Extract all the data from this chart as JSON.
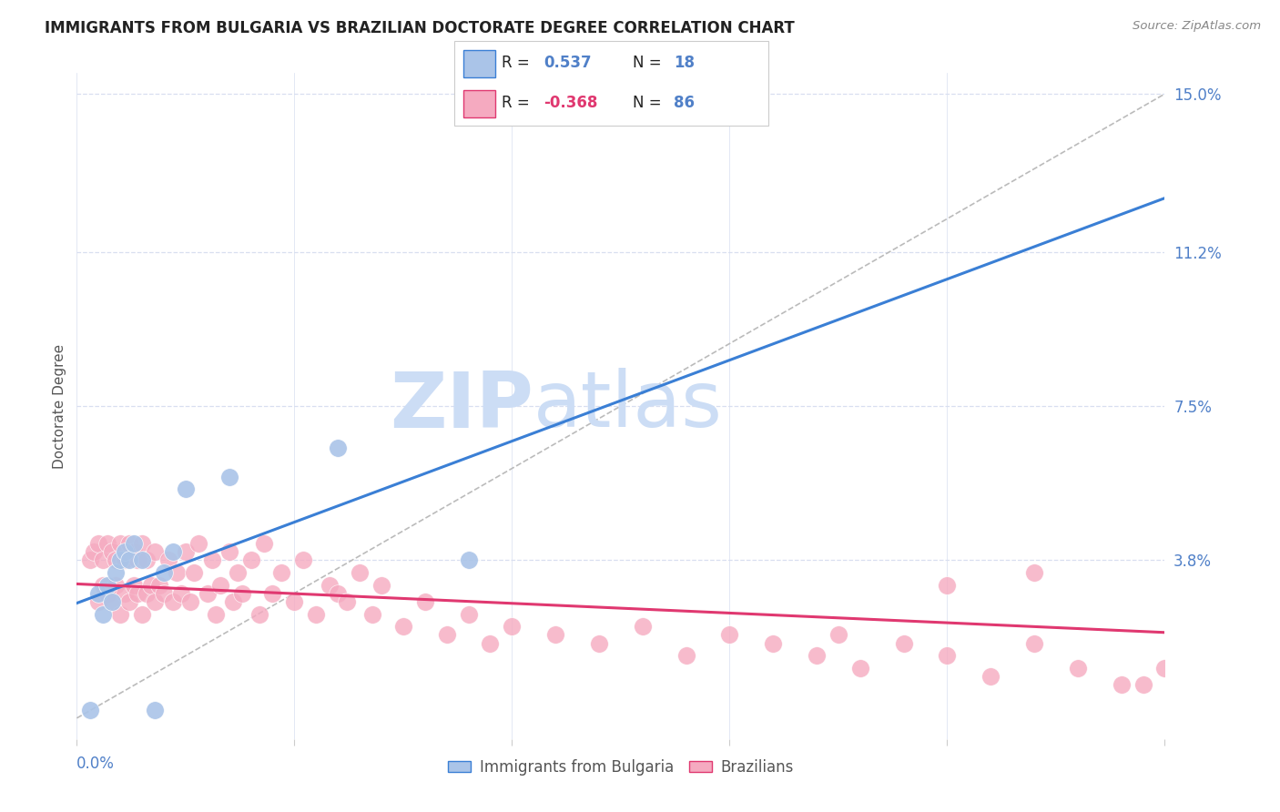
{
  "title": "IMMIGRANTS FROM BULGARIA VS BRAZILIAN DOCTORATE DEGREE CORRELATION CHART",
  "source": "Source: ZipAtlas.com",
  "ylabel": "Doctorate Degree",
  "y_ticks": [
    0.038,
    0.075,
    0.112,
    0.15
  ],
  "y_tick_labels": [
    "3.8%",
    "7.5%",
    "11.2%",
    "15.0%"
  ],
  "x_lim": [
    0.0,
    0.25
  ],
  "y_lim": [
    -0.005,
    0.155
  ],
  "bulgaria_color": "#aac4e8",
  "brazil_color": "#f5aac0",
  "bulgaria_line_color": "#3a7fd5",
  "brazil_line_color": "#e03870",
  "r_bulgaria": 0.537,
  "n_bulgaria": 18,
  "r_brazil": -0.368,
  "n_brazil": 86,
  "watermark_zip": "ZIP",
  "watermark_atlas": "atlas",
  "watermark_color": "#ccddf5",
  "title_fontsize": 12,
  "axis_label_color": "#5080c8",
  "grid_color": "#d8dff0",
  "background_color": "#ffffff",
  "bulgaria_scatter_x": [
    0.003,
    0.005,
    0.006,
    0.007,
    0.008,
    0.009,
    0.01,
    0.011,
    0.012,
    0.013,
    0.015,
    0.018,
    0.02,
    0.022,
    0.025,
    0.035,
    0.06,
    0.09
  ],
  "bulgaria_scatter_y": [
    0.002,
    0.03,
    0.025,
    0.032,
    0.028,
    0.035,
    0.038,
    0.04,
    0.038,
    0.042,
    0.038,
    0.002,
    0.035,
    0.04,
    0.055,
    0.058,
    0.065,
    0.038
  ],
  "brazil_scatter_x": [
    0.003,
    0.004,
    0.005,
    0.005,
    0.006,
    0.006,
    0.007,
    0.007,
    0.008,
    0.008,
    0.009,
    0.009,
    0.01,
    0.01,
    0.011,
    0.011,
    0.012,
    0.012,
    0.013,
    0.013,
    0.014,
    0.014,
    0.015,
    0.015,
    0.016,
    0.016,
    0.017,
    0.018,
    0.018,
    0.019,
    0.02,
    0.021,
    0.022,
    0.023,
    0.024,
    0.025,
    0.026,
    0.027,
    0.028,
    0.03,
    0.031,
    0.032,
    0.033,
    0.035,
    0.036,
    0.037,
    0.038,
    0.04,
    0.042,
    0.043,
    0.045,
    0.047,
    0.05,
    0.052,
    0.055,
    0.058,
    0.06,
    0.062,
    0.065,
    0.068,
    0.07,
    0.075,
    0.08,
    0.085,
    0.09,
    0.095,
    0.1,
    0.11,
    0.12,
    0.13,
    0.14,
    0.15,
    0.16,
    0.17,
    0.18,
    0.19,
    0.2,
    0.21,
    0.22,
    0.23,
    0.24,
    0.25,
    0.2,
    0.22,
    0.175,
    0.245
  ],
  "brazil_scatter_y": [
    0.038,
    0.04,
    0.028,
    0.042,
    0.032,
    0.038,
    0.03,
    0.042,
    0.028,
    0.04,
    0.032,
    0.038,
    0.025,
    0.042,
    0.03,
    0.038,
    0.028,
    0.042,
    0.032,
    0.04,
    0.03,
    0.038,
    0.025,
    0.042,
    0.03,
    0.038,
    0.032,
    0.028,
    0.04,
    0.032,
    0.03,
    0.038,
    0.028,
    0.035,
    0.03,
    0.04,
    0.028,
    0.035,
    0.042,
    0.03,
    0.038,
    0.025,
    0.032,
    0.04,
    0.028,
    0.035,
    0.03,
    0.038,
    0.025,
    0.042,
    0.03,
    0.035,
    0.028,
    0.038,
    0.025,
    0.032,
    0.03,
    0.028,
    0.035,
    0.025,
    0.032,
    0.022,
    0.028,
    0.02,
    0.025,
    0.018,
    0.022,
    0.02,
    0.018,
    0.022,
    0.015,
    0.02,
    0.018,
    0.015,
    0.012,
    0.018,
    0.015,
    0.01,
    0.018,
    0.012,
    0.008,
    0.012,
    0.032,
    0.035,
    0.02,
    0.008
  ]
}
